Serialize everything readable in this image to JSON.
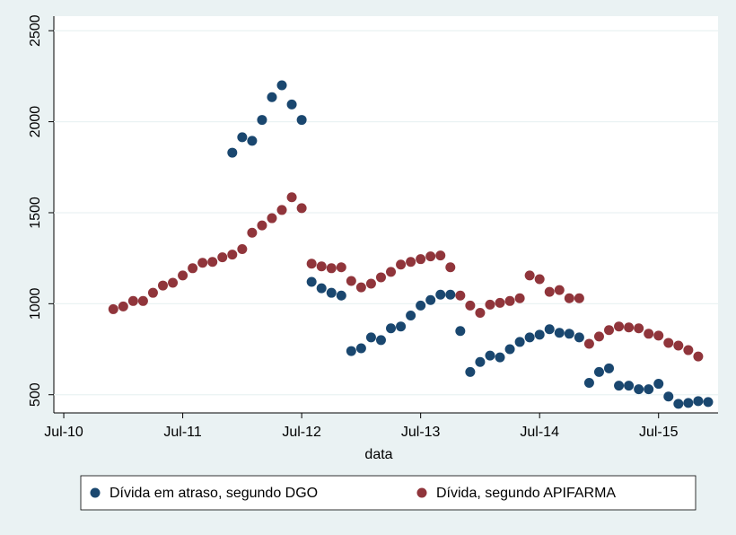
{
  "chart_data": {
    "type": "scatter",
    "x_label": "data",
    "xlim": [
      "2010-06",
      "2016-01"
    ],
    "xticks": [
      {
        "value": "2010-07",
        "label": "Jul-10"
      },
      {
        "value": "2011-07",
        "label": "Jul-11"
      },
      {
        "value": "2012-07",
        "label": "Jul-12"
      },
      {
        "value": "2013-07",
        "label": "Jul-13"
      },
      {
        "value": "2014-07",
        "label": "Jul-14"
      },
      {
        "value": "2015-07",
        "label": "Jul-15"
      }
    ],
    "ylim": [
      400,
      2580
    ],
    "yticks": [
      500,
      1000,
      1500,
      2000,
      2500
    ],
    "grid": true,
    "legend": "bottom",
    "series": [
      {
        "name": "Dívida em atraso, segundo DGO",
        "color": "#1a476f",
        "x": [
          "2011-12",
          "2012-01",
          "2012-02",
          "2012-03",
          "2012-04",
          "2012-05",
          "2012-06",
          "2012-07",
          "2012-08",
          "2012-09",
          "2012-10",
          "2012-11",
          "2012-12",
          "2013-01",
          "2013-02",
          "2013-03",
          "2013-04",
          "2013-05",
          "2013-06",
          "2013-07",
          "2013-08",
          "2013-09",
          "2013-10",
          "2013-11",
          "2013-12",
          "2014-01",
          "2014-02",
          "2014-03",
          "2014-04",
          "2014-05",
          "2014-06",
          "2014-07",
          "2014-08",
          "2014-09",
          "2014-10",
          "2014-11",
          "2014-12",
          "2015-01",
          "2015-02",
          "2015-03",
          "2015-04",
          "2015-05",
          "2015-06",
          "2015-07",
          "2015-08",
          "2015-09",
          "2015-10",
          "2015-11",
          "2015-12"
        ],
        "values": [
          1830,
          1915,
          1895,
          2010,
          2135,
          2200,
          2095,
          2010,
          1120,
          1085,
          1060,
          1045,
          740,
          755,
          815,
          800,
          865,
          875,
          935,
          990,
          1020,
          1050,
          1050,
          850,
          625,
          680,
          715,
          705,
          750,
          790,
          815,
          830,
          860,
          840,
          835,
          815,
          565,
          625,
          645,
          550,
          550,
          530,
          530,
          560,
          490,
          450,
          455,
          465,
          460
        ]
      },
      {
        "name": "Dívida, segundo APIFARMA",
        "color": "#90353b",
        "x": [
          "2010-12",
          "2011-01",
          "2011-02",
          "2011-03",
          "2011-04",
          "2011-05",
          "2011-06",
          "2011-07",
          "2011-08",
          "2011-09",
          "2011-10",
          "2011-11",
          "2011-12",
          "2012-01",
          "2012-02",
          "2012-03",
          "2012-04",
          "2012-05",
          "2012-06",
          "2012-07",
          "2012-08",
          "2012-09",
          "2012-10",
          "2012-11",
          "2012-12",
          "2013-01",
          "2013-02",
          "2013-03",
          "2013-04",
          "2013-05",
          "2013-06",
          "2013-07",
          "2013-08",
          "2013-09",
          "2013-10",
          "2013-11",
          "2013-12",
          "2014-01",
          "2014-02",
          "2014-03",
          "2014-04",
          "2014-05",
          "2014-06",
          "2014-07",
          "2014-08",
          "2014-09",
          "2014-10",
          "2014-11",
          "2014-12",
          "2015-01",
          "2015-02",
          "2015-03",
          "2015-04",
          "2015-05",
          "2015-06",
          "2015-07",
          "2015-08",
          "2015-09",
          "2015-10",
          "2015-11"
        ],
        "values": [
          970,
          985,
          1015,
          1015,
          1060,
          1100,
          1115,
          1155,
          1195,
          1225,
          1230,
          1255,
          1270,
          1300,
          1390,
          1430,
          1470,
          1515,
          1585,
          1525,
          1220,
          1205,
          1195,
          1200,
          1125,
          1090,
          1110,
          1145,
          1175,
          1215,
          1230,
          1245,
          1260,
          1265,
          1200,
          1045,
          990,
          950,
          995,
          1005,
          1015,
          1030,
          1155,
          1135,
          1065,
          1075,
          1030,
          1030,
          780,
          820,
          855,
          875,
          870,
          865,
          835,
          825,
          785,
          770,
          745,
          710
        ]
      }
    ]
  }
}
